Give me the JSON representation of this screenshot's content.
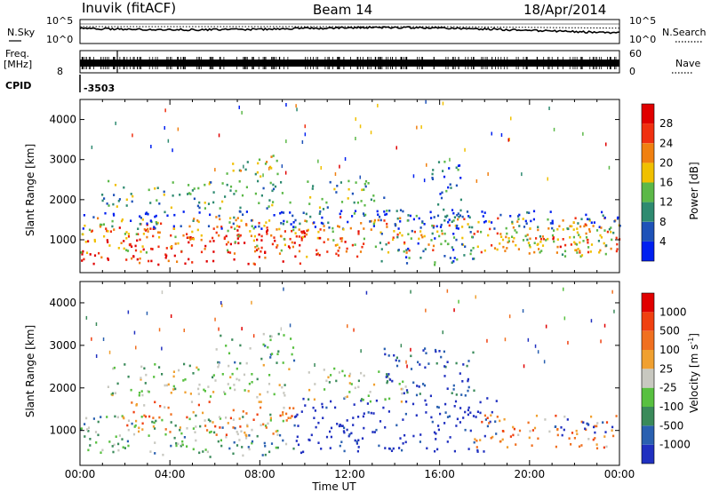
{
  "header": {
    "station": "Inuvik (fitACF)",
    "beam": "Beam 14",
    "date": "18/Apr/2014"
  },
  "top_panels": {
    "nsky_label": "N.Sky",
    "nsky_ticks": [
      "10^5",
      "10^0"
    ],
    "nsearch_label": "N.Search",
    "nsearch_ticks": [
      "10^5",
      "10^0"
    ],
    "freq_label": "Freq.",
    "freq_unit": "[MHz]",
    "freq_tick": "8",
    "nave_label": "Nave",
    "nave_ticks": [
      "60",
      "0"
    ],
    "cpid_label": "CPID",
    "cpid_value": "-3503"
  },
  "chart_data": [
    {
      "type": "heatmap",
      "panel": "power",
      "ylabel": "Slant Range [km]",
      "yticks": [
        1000,
        2000,
        3000,
        4000
      ],
      "ylim": [
        180,
        4500
      ],
      "xlabel": "Time UT",
      "xticks": [
        "00:00",
        "04:00",
        "08:00",
        "12:00",
        "16:00",
        "20:00",
        "00:00"
      ],
      "xlim_hours": [
        0,
        24
      ],
      "colorbar": {
        "label": "Power [dB]",
        "ticks": [
          "28",
          "24",
          "20",
          "16",
          "12",
          "8",
          "4"
        ],
        "colors": [
          "#0020f0",
          "#1e52b8",
          "#2e8a70",
          "#5cb848",
          "#f0c000",
          "#f08010",
          "#f03010",
          "#e00000"
        ]
      },
      "bands": [
        {
          "t0": 0.0,
          "t1": 10.0,
          "r0": 400,
          "r1": 1450,
          "c": 7
        },
        {
          "t0": 0.0,
          "t1": 24.0,
          "r0": 700,
          "r1": 1600,
          "c": 5
        },
        {
          "t0": 0.0,
          "t1": 24.0,
          "r0": 1300,
          "r1": 1750,
          "c": 1
        },
        {
          "t0": 0.8,
          "t1": 9.5,
          "r0": 1800,
          "r1": 2500,
          "c": 3
        },
        {
          "t0": 6.5,
          "t1": 9.0,
          "r0": 2600,
          "r1": 3200,
          "c": 4
        },
        {
          "t0": 10.0,
          "t1": 13.5,
          "r0": 1600,
          "r1": 2500,
          "c": 3
        },
        {
          "t0": 9.5,
          "t1": 12.5,
          "r0": 600,
          "r1": 1300,
          "c": 6
        },
        {
          "t0": 13.0,
          "t1": 17.5,
          "r0": 400,
          "r1": 1800,
          "c": 2
        },
        {
          "t0": 15.5,
          "t1": 17.0,
          "r0": 1800,
          "r1": 3000,
          "c": 2
        },
        {
          "t0": 18.5,
          "t1": 23.8,
          "r0": 600,
          "r1": 1400,
          "c": 4
        },
        {
          "t0": 20.0,
          "t1": 24.0,
          "r0": 700,
          "r1": 1100,
          "c": 6
        }
      ]
    },
    {
      "type": "heatmap",
      "panel": "velocity",
      "ylabel": "Slant Range [km]",
      "yticks": [
        1000,
        2000,
        3000,
        4000
      ],
      "ylim": [
        180,
        4500
      ],
      "xlabel": "Time UT",
      "xticks": [
        "00:00",
        "04:00",
        "08:00",
        "12:00",
        "16:00",
        "20:00",
        "00:00"
      ],
      "xlim_hours": [
        0,
        24
      ],
      "colorbar": {
        "label": "Velocity [m s",
        "label_sup": "-1",
        "label_close": "]",
        "ticks": [
          "1000",
          "500",
          "100",
          "25",
          "-25",
          "-100",
          "-500",
          "-1000"
        ],
        "colors": [
          "#2030c0",
          "#2a60b0",
          "#3a8a5a",
          "#58c040",
          "#c8c8c0",
          "#f0a030",
          "#f07020",
          "#f04010",
          "#e00000"
        ]
      },
      "bands": [
        {
          "t0": 0.0,
          "t1": 9.5,
          "r0": 400,
          "r1": 1400,
          "c": 3
        },
        {
          "t0": 1.5,
          "t1": 9.5,
          "r0": 900,
          "r1": 1700,
          "c": 6
        },
        {
          "t0": 1.0,
          "t1": 9.5,
          "r0": 1800,
          "r1": 2600,
          "c": 4
        },
        {
          "t0": 6.0,
          "t1": 9.5,
          "r0": 2600,
          "r1": 3300,
          "c": 3
        },
        {
          "t0": 9.5,
          "t1": 18.5,
          "r0": 500,
          "r1": 1800,
          "c": 0
        },
        {
          "t0": 10.0,
          "t1": 14.5,
          "r0": 1700,
          "r1": 2500,
          "c": 4
        },
        {
          "t0": 13.5,
          "t1": 17.5,
          "r0": 1800,
          "r1": 3000,
          "c": 1
        },
        {
          "t0": 17.5,
          "t1": 24.0,
          "r0": 600,
          "r1": 1400,
          "c": 6
        },
        {
          "t0": 21.0,
          "t1": 24.0,
          "r0": 900,
          "r1": 1300,
          "c": 0
        }
      ]
    }
  ]
}
